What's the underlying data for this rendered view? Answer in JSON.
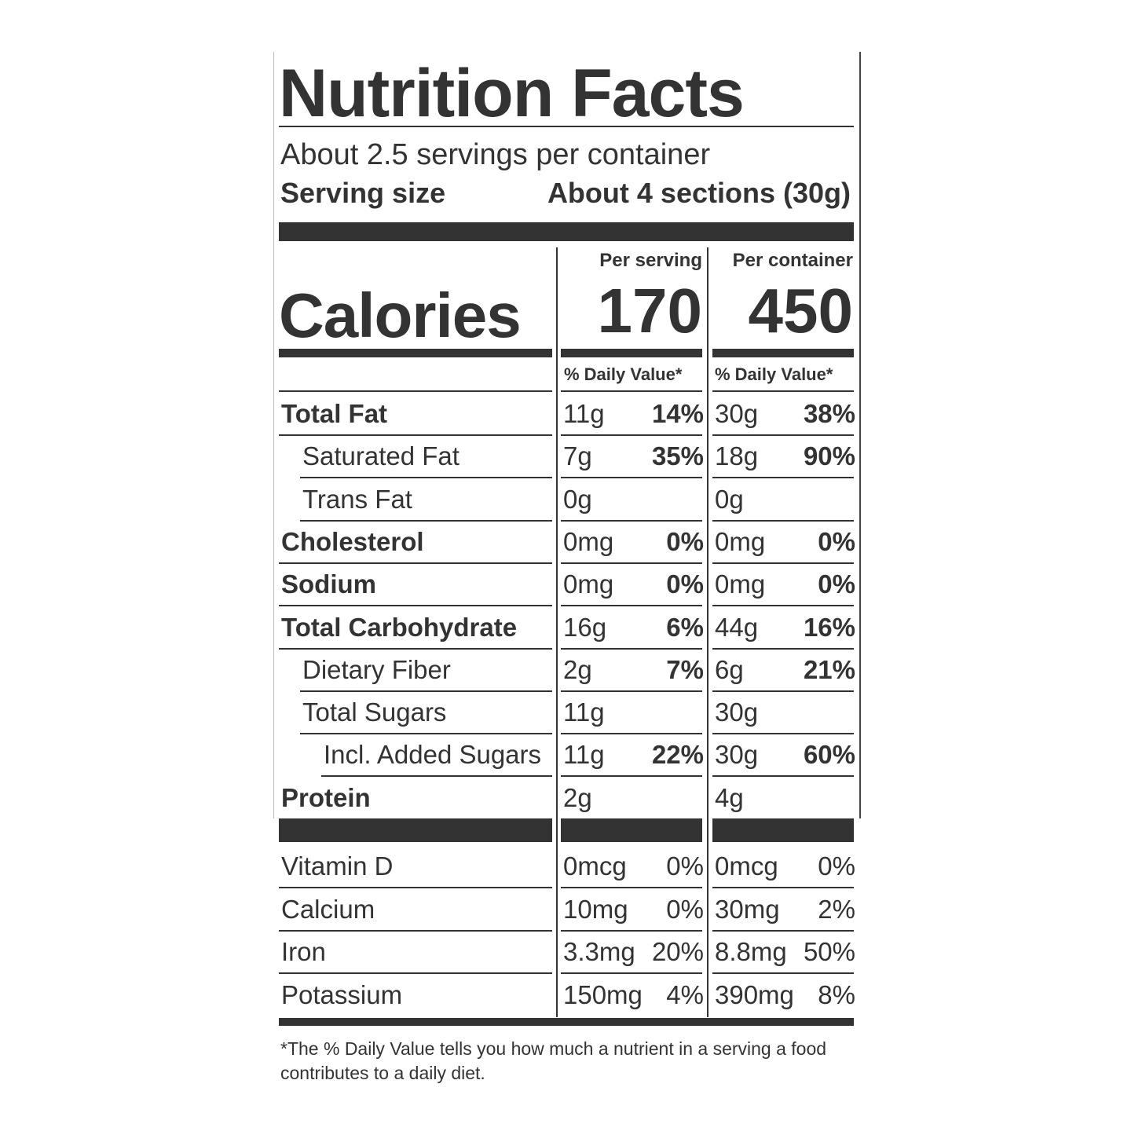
{
  "title": "Nutrition Facts",
  "servings_per_container": "About 2.5 servings per container",
  "serving_size_label": "Serving size",
  "serving_size_value": "About 4 sections (30g)",
  "calories": {
    "label": "Calories",
    "per_serving_header": "Per serving",
    "per_container_header": "Per container",
    "per_serving": "170",
    "per_container": "450"
  },
  "dv_header": "% Daily Value*",
  "nutrients": [
    {
      "name": "Total Fat",
      "bold": true,
      "indent": 0,
      "serving_amount": "11g",
      "serving_dv": "14%",
      "container_amount": "30g",
      "container_dv": "38%"
    },
    {
      "name": "Saturated Fat",
      "bold": false,
      "indent": 1,
      "serving_amount": "7g",
      "serving_dv": "35%",
      "container_amount": "18g",
      "container_dv": "90%"
    },
    {
      "name": "Trans Fat",
      "bold": false,
      "indent": 1,
      "serving_amount": "0g",
      "container_amount": "0g"
    },
    {
      "name": "Cholesterol",
      "bold": true,
      "indent": 0,
      "serving_amount": "0mg",
      "serving_dv": "0%",
      "container_amount": "0mg",
      "container_dv": "0%"
    },
    {
      "name": "Sodium",
      "bold": true,
      "indent": 0,
      "serving_amount": "0mg",
      "serving_dv": "0%",
      "container_amount": "0mg",
      "container_dv": "0%"
    },
    {
      "name": "Total Carbohydrate",
      "bold": true,
      "indent": 0,
      "serving_amount": "16g",
      "serving_dv": "6%",
      "container_amount": "44g",
      "container_dv": "16%"
    },
    {
      "name": "Dietary Fiber",
      "bold": false,
      "indent": 1,
      "serving_amount": "2g",
      "serving_dv": "7%",
      "container_amount": "6g",
      "container_dv": "21%"
    },
    {
      "name": "Total Sugars",
      "bold": false,
      "indent": 1,
      "serving_amount": "11g",
      "container_amount": "30g"
    },
    {
      "name": "Incl. Added Sugars",
      "bold": false,
      "indent": 2,
      "serving_amount": "11g",
      "serving_dv": "22%",
      "container_amount": "30g",
      "container_dv": "60%"
    },
    {
      "name": "Protein",
      "bold": true,
      "indent": 0,
      "serving_amount": "2g",
      "container_amount": "4g"
    }
  ],
  "vitamins": [
    {
      "name": "Vitamin D",
      "serving_amount": "0mcg",
      "serving_dv": "0%",
      "container_amount": "0mcg",
      "container_dv": "0%"
    },
    {
      "name": "Calcium",
      "serving_amount": "10mg",
      "serving_dv": "0%",
      "container_amount": "30mg",
      "container_dv": "2%"
    },
    {
      "name": "Iron",
      "serving_amount": "3.3mg",
      "serving_dv": "20%",
      "container_amount": "8.8mg",
      "container_dv": "50%"
    },
    {
      "name": "Potassium",
      "serving_amount": "150mg",
      "serving_dv": "4%",
      "container_amount": "390mg",
      "container_dv": "8%"
    }
  ],
  "footnote": "*The % Daily Value tells you how much a nutrient in a serving a food contributes to a daily diet."
}
